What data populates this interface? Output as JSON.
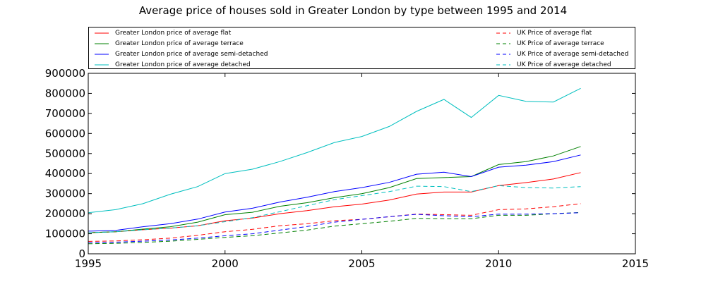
{
  "chart_data": {
    "type": "line",
    "title": "Average price of houses sold in Greater London by type between 1995 and 2014",
    "xlabel": "",
    "ylabel": "",
    "xlim": [
      1995,
      2015
    ],
    "ylim": [
      0,
      900000
    ],
    "xticks": [
      1995,
      2000,
      2005,
      2010,
      2015
    ],
    "yticks": [
      0,
      100000,
      200000,
      300000,
      400000,
      500000,
      600000,
      700000,
      800000,
      900000
    ],
    "grid": false,
    "legend_position": "above plot",
    "x": [
      1995,
      1996,
      1997,
      1998,
      1999,
      2000,
      2001,
      2002,
      2003,
      2004,
      2005,
      2006,
      2007,
      2008,
      2009,
      2010,
      2011,
      2012,
      2013
    ],
    "series": [
      {
        "name": "Greater London price of average flat",
        "color": "#ff0000",
        "style": "solid",
        "values": [
          105000,
          110000,
          120000,
          128000,
          140000,
          165000,
          178000,
          200000,
          215000,
          235000,
          248000,
          268000,
          298000,
          308000,
          308000,
          340000,
          355000,
          373000,
          405000
        ]
      },
      {
        "name": "Greater London price of average terrace",
        "color": "#008000",
        "style": "solid",
        "values": [
          105000,
          110000,
          123000,
          135000,
          158000,
          195000,
          207000,
          237000,
          255000,
          280000,
          300000,
          330000,
          375000,
          380000,
          385000,
          445000,
          460000,
          488000,
          535000
        ]
      },
      {
        "name": "Greater London price of average semi-detached",
        "color": "#0000ff",
        "style": "solid",
        "values": [
          113000,
          117000,
          135000,
          150000,
          173000,
          208000,
          227000,
          258000,
          282000,
          310000,
          330000,
          356000,
          397000,
          407000,
          385000,
          432000,
          442000,
          460000,
          493000
        ]
      },
      {
        "name": "Greater London price of average detached",
        "color": "#00bfbf",
        "style": "solid",
        "values": [
          205000,
          220000,
          250000,
          297000,
          335000,
          400000,
          422000,
          460000,
          505000,
          555000,
          585000,
          635000,
          710000,
          770000,
          680000,
          790000,
          760000,
          757000,
          825000
        ]
      },
      {
        "name": "UK Price of average flat",
        "color": "#ff0000",
        "style": "dashed",
        "values": [
          62000,
          64000,
          70000,
          78000,
          92000,
          110000,
          122000,
          140000,
          150000,
          165000,
          172000,
          185000,
          198000,
          195000,
          192000,
          220000,
          224000,
          235000,
          250000
        ]
      },
      {
        "name": "UK Price of average terrace",
        "color": "#008000",
        "style": "dashed",
        "values": [
          50000,
          52000,
          57000,
          63000,
          72000,
          82000,
          90000,
          104000,
          118000,
          138000,
          150000,
          162000,
          177000,
          175000,
          175000,
          192000,
          192000,
          200000,
          206000
        ]
      },
      {
        "name": "UK Price of average semi-detached",
        "color": "#0000ff",
        "style": "dashed",
        "values": [
          55000,
          58000,
          63000,
          69000,
          78000,
          90000,
          100000,
          118000,
          136000,
          158000,
          172000,
          185000,
          197000,
          190000,
          185000,
          198000,
          198000,
          200000,
          205000
        ]
      },
      {
        "name": "UK Price of average detached",
        "color": "#00bfbf",
        "style": "dashed",
        "values": [
          105000,
          110000,
          120000,
          128000,
          140000,
          160000,
          180000,
          210000,
          240000,
          270000,
          290000,
          310000,
          337000,
          335000,
          310000,
          340000,
          330000,
          328000,
          335000
        ]
      }
    ]
  }
}
